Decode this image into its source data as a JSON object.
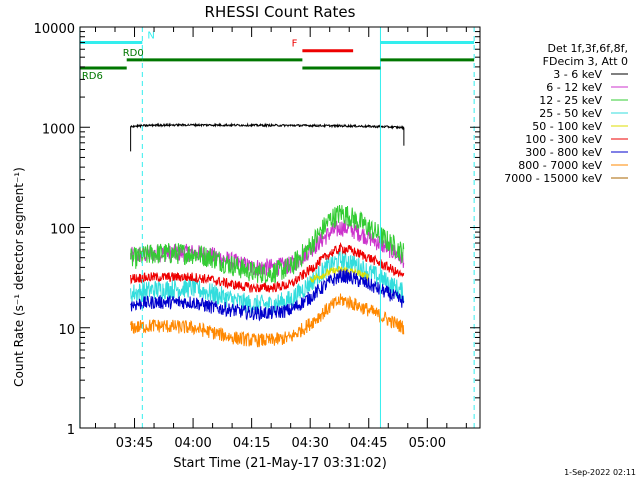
{
  "chart_data": {
    "type": "line",
    "title": "RHESSI Count Rates",
    "xlabel": "Start Time (21-May-17 03:31:02)",
    "ylabel": "Count Rate (s⁻¹ detector segment⁻¹)",
    "yscale": "log",
    "ylim": [
      1,
      10000
    ],
    "xlim": [
      "03:31:02",
      "05:13:30"
    ],
    "y_ticks": [
      "1",
      "10",
      "100",
      "1000",
      "10000"
    ],
    "x_ticks": [
      "03:45",
      "04:00",
      "04:15",
      "04:30",
      "04:45",
      "05:00"
    ],
    "footer": "1-Sep-2022 02:11",
    "legend_position": "top-right",
    "legend_header": [
      "Det 1f,3f,6f,8f,",
      "FDecim 3, Att 0"
    ],
    "series": [
      {
        "name": "3 - 6 keV",
        "color": "#000000",
        "x": [
          "03:44",
          "03:50",
          "04:00",
          "04:10",
          "04:20",
          "04:30",
          "04:40",
          "04:50",
          "04:54"
        ],
        "values": [
          1020,
          1050,
          1055,
          1050,
          1045,
          1040,
          1030,
          1010,
          990
        ]
      },
      {
        "name": "6 - 12 keV",
        "color": "#cc33cc",
        "x": [
          "03:44",
          "03:50",
          "04:00",
          "04:05",
          "04:10",
          "04:15",
          "04:20",
          "04:25",
          "04:30",
          "04:35",
          "04:38",
          "04:40",
          "04:45",
          "04:50",
          "04:54"
        ],
        "values": [
          52,
          55,
          56,
          52,
          46,
          40,
          40,
          42,
          60,
          88,
          100,
          98,
          80,
          62,
          48
        ]
      },
      {
        "name": "12 - 25 keV",
        "color": "#33cc33",
        "x": [
          "03:44",
          "03:50",
          "04:00",
          "04:05",
          "04:10",
          "04:15",
          "04:20",
          "04:25",
          "04:30",
          "04:35",
          "04:38",
          "04:40",
          "04:45",
          "04:50",
          "04:54"
        ],
        "values": [
          48,
          55,
          55,
          50,
          42,
          36,
          35,
          40,
          65,
          120,
          140,
          130,
          100,
          72,
          55
        ]
      },
      {
        "name": "25 - 50 keV",
        "color": "#33dddd",
        "x": [
          "03:44",
          "03:50",
          "04:00",
          "04:05",
          "04:10",
          "04:15",
          "04:20",
          "04:25",
          "04:30",
          "04:35",
          "04:38",
          "04:40",
          "04:45",
          "04:50",
          "04:54"
        ],
        "values": [
          22,
          24,
          25,
          22,
          19,
          17,
          17,
          19,
          28,
          42,
          48,
          46,
          36,
          28,
          22
        ]
      },
      {
        "name": "50 - 100 keV",
        "color": "#dddd00",
        "x": [
          "04:30",
          "04:35",
          "04:38",
          "04:40",
          "04:45"
        ],
        "values": [
          30,
          36,
          38,
          37,
          32
        ]
      },
      {
        "name": "100 - 300 keV",
        "color": "#ee0000",
        "x": [
          "03:44",
          "03:50",
          "04:00",
          "04:05",
          "04:10",
          "04:15",
          "04:20",
          "04:25",
          "04:30",
          "04:35",
          "04:38",
          "04:40",
          "04:45",
          "04:50",
          "04:54"
        ],
        "values": [
          31,
          32,
          32,
          30,
          27,
          25,
          25,
          27,
          38,
          55,
          62,
          60,
          50,
          40,
          32
        ]
      },
      {
        "name": "300 - 800 keV",
        "color": "#0000cc",
        "x": [
          "03:44",
          "03:50",
          "04:00",
          "04:05",
          "04:10",
          "04:15",
          "04:20",
          "04:25",
          "04:30",
          "04:35",
          "04:38",
          "04:40",
          "04:45",
          "04:50",
          "04:54"
        ],
        "values": [
          17,
          18,
          18,
          16,
          15,
          14,
          14,
          15,
          20,
          29,
          33,
          32,
          27,
          22,
          18
        ]
      },
      {
        "name": "800 - 7000 keV",
        "color": "#ff8800",
        "x": [
          "03:44",
          "03:50",
          "04:00",
          "04:05",
          "04:10",
          "04:15",
          "04:20",
          "04:25",
          "04:30",
          "04:35",
          "04:38",
          "04:40",
          "04:45",
          "04:50",
          "04:54"
        ],
        "values": [
          10,
          10.5,
          10,
          9,
          8,
          7.5,
          7.5,
          8,
          11,
          16,
          19,
          18,
          15,
          12,
          10
        ]
      },
      {
        "name": "7000 - 15000 keV",
        "color": "#aa6600",
        "x": [],
        "values": []
      }
    ],
    "state_bars": [
      {
        "label": "N",
        "color": "#33eeee",
        "segments": [
          [
            "03:31",
            "03:47"
          ],
          [
            "04:48",
            "05:12"
          ]
        ],
        "level": 7000
      },
      {
        "label": "F",
        "color": "#ee0000",
        "segments": [
          [
            "04:28",
            "04:41"
          ]
        ],
        "level": 5800
      },
      {
        "label": "RD0",
        "color": "#007700",
        "segments": [
          [
            "03:43",
            "03:47"
          ],
          [
            "03:47",
            "04:28"
          ],
          [
            "04:48",
            "05:12"
          ]
        ],
        "level": 4700
      },
      {
        "label": "RD6",
        "color": "#007700",
        "segments": [
          [
            "03:31",
            "03:43"
          ],
          [
            "04:28",
            "04:48"
          ]
        ],
        "level": 3900
      }
    ],
    "vlines": [
      {
        "x": "03:31",
        "style": "solid",
        "color": "#33eeee"
      },
      {
        "x": "03:47",
        "style": "dashed",
        "color": "#33eeee"
      },
      {
        "x": "04:48",
        "style": "solid",
        "color": "#33eeee"
      },
      {
        "x": "05:12",
        "style": "dashed",
        "color": "#33eeee"
      }
    ]
  }
}
